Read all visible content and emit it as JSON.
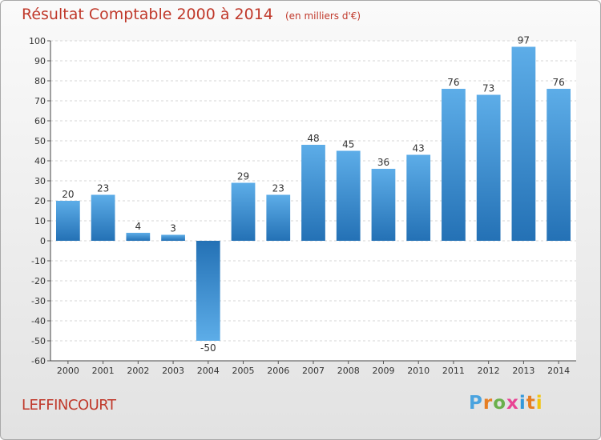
{
  "title": "Résultat Comptable 2000 à 2014",
  "subtitle": "(en milliers d'€)",
  "town": "LEFFINCOURT",
  "logo": {
    "p": "P",
    "r": "r",
    "o": "o",
    "x": "x",
    "i": "i",
    "t": "t",
    "i2": "i"
  },
  "colors": {
    "bar_top": "#5dade8",
    "bar_bottom": "#2471b5",
    "title": "#c0392b"
  },
  "chart_data": {
    "type": "bar",
    "title": "Résultat Comptable 2000 à 2014",
    "xlabel": "",
    "ylabel": "",
    "categories": [
      "2000",
      "2001",
      "2002",
      "2003",
      "2004",
      "2005",
      "2006",
      "2007",
      "2008",
      "2009",
      "2010",
      "2011",
      "2012",
      "2013",
      "2014"
    ],
    "values": [
      20,
      23,
      4,
      3,
      -50,
      29,
      23,
      48,
      45,
      36,
      43,
      76,
      73,
      97,
      76
    ],
    "ylim": [
      -60,
      100
    ],
    "yticks": [
      100,
      90,
      80,
      70,
      60,
      50,
      40,
      30,
      20,
      10,
      0,
      -10,
      -20,
      -30,
      -40,
      -50,
      -60
    ],
    "grid": "horizontal"
  }
}
